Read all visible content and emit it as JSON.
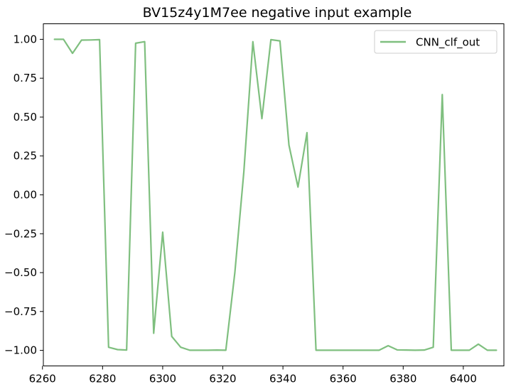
{
  "chart_data": {
    "type": "line",
    "title": "BV15z4y1M7ee negative input example",
    "xlabel": "",
    "ylabel": "",
    "xlim": [
      6260.3,
      6413.5
    ],
    "ylim": [
      -1.1,
      1.1
    ],
    "grid": false,
    "legend_position": "top-right",
    "xticks": [
      6260,
      6280,
      6300,
      6320,
      6340,
      6360,
      6380,
      6400
    ],
    "yticks": [
      1.0,
      0.75,
      0.5,
      0.25,
      0.0,
      -0.25,
      -0.5,
      -0.75,
      -1.0
    ],
    "xtick_labels": [
      "6260",
      "6280",
      "6300",
      "6320",
      "6340",
      "6360",
      "6380",
      "6400"
    ],
    "ytick_labels": [
      "1.00",
      "0.75",
      "0.50",
      "0.25",
      "0.00",
      "−0.25",
      "−0.50",
      "−0.75",
      "−1.00"
    ],
    "series": [
      {
        "name": "CNN_clf_out",
        "color": "#7fbf7f",
        "x": [
          6264,
          6267,
          6270,
          6273,
          6276,
          6279,
          6282,
          6285,
          6288,
          6291,
          6294,
          6297,
          6300,
          6303,
          6306,
          6309,
          6312,
          6315,
          6318,
          6321,
          6324,
          6327,
          6330,
          6333,
          6336,
          6339,
          6342,
          6345,
          6348,
          6351,
          6354,
          6357,
          6360,
          6363,
          6366,
          6369,
          6372,
          6375,
          6378,
          6381,
          6384,
          6387,
          6390,
          6393,
          6396,
          6399,
          6402,
          6405,
          6408,
          6411
        ],
        "y": [
          1.0,
          1.0,
          0.91,
          0.995,
          0.996,
          0.998,
          -0.98,
          -0.995,
          -0.998,
          0.975,
          0.985,
          -0.89,
          -0.24,
          -0.91,
          -0.98,
          -0.999,
          -0.999,
          -0.999,
          -0.998,
          -0.999,
          -0.5,
          0.15,
          0.985,
          0.49,
          0.998,
          0.99,
          0.32,
          0.05,
          0.4,
          -0.999,
          -0.999,
          -0.999,
          -0.999,
          -0.999,
          -0.999,
          -0.999,
          -0.999,
          -0.97,
          -0.997,
          -0.998,
          -0.999,
          -0.998,
          -0.98,
          0.645,
          -0.999,
          -0.999,
          -0.999,
          -0.96,
          -0.999,
          -0.999
        ]
      }
    ]
  }
}
